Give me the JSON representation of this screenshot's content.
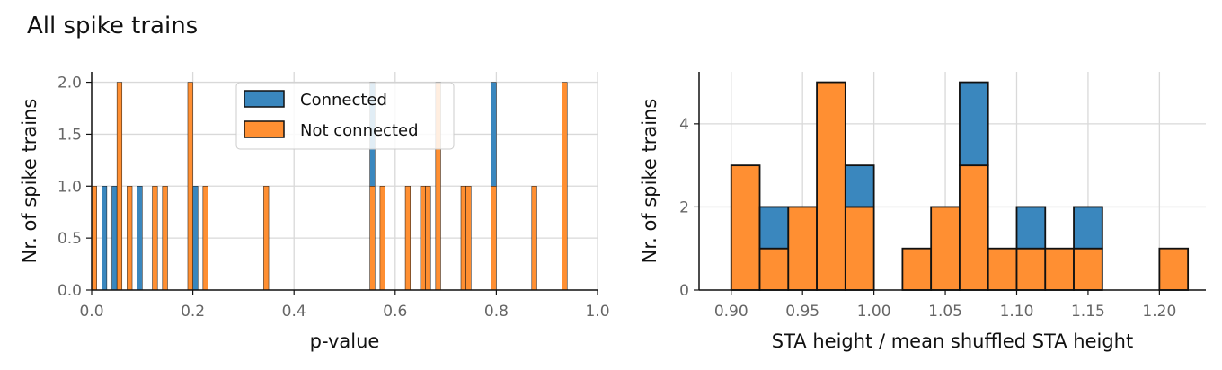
{
  "title": "All spike trains",
  "colors": {
    "connected": "#3a87be",
    "not_connected": "#ff8f32",
    "edge": "#111111"
  },
  "chart_data": [
    {
      "type": "bar",
      "subtype": "stacked-histogram",
      "xlabel": "p-value",
      "ylabel": "Nr. of spike trains",
      "xlim": [
        0,
        1.0
      ],
      "ylim": [
        0,
        2.1
      ],
      "xticks": [
        "0.0",
        "0.2",
        "0.4",
        "0.6",
        "0.8",
        "1.0"
      ],
      "yticks": [
        "0.0",
        "0.5",
        "1.0",
        "1.5",
        "2.0"
      ],
      "grid": true,
      "legend": {
        "placement": "top-center",
        "entries": [
          "Connected",
          "Not connected"
        ]
      },
      "bin_width": 0.01,
      "series": [
        {
          "name": "Connected",
          "bins": [
            [
              0.02,
              1
            ],
            [
              0.04,
              1
            ],
            [
              0.09,
              1
            ],
            [
              0.2,
              1
            ],
            [
              0.55,
              1
            ],
            [
              0.79,
              1
            ]
          ]
        },
        {
          "name": "Not connected",
          "bins": [
            [
              0.0,
              1
            ],
            [
              0.05,
              2
            ],
            [
              0.07,
              1
            ],
            [
              0.12,
              1
            ],
            [
              0.14,
              1
            ],
            [
              0.19,
              2
            ],
            [
              0.22,
              1
            ],
            [
              0.34,
              1
            ],
            [
              0.55,
              1
            ],
            [
              0.57,
              1
            ],
            [
              0.62,
              1
            ],
            [
              0.65,
              1
            ],
            [
              0.66,
              1
            ],
            [
              0.68,
              2
            ],
            [
              0.73,
              1
            ],
            [
              0.74,
              1
            ],
            [
              0.79,
              1
            ],
            [
              0.87,
              1
            ],
            [
              0.93,
              2
            ]
          ]
        }
      ]
    },
    {
      "type": "bar",
      "subtype": "stacked-histogram",
      "xlabel": "STA height / mean shuffled STA height",
      "ylabel": "Nr. of spike trains",
      "xlim": [
        0.8775,
        1.2325
      ],
      "ylim": [
        0,
        5.25
      ],
      "xticks": [
        "0.90",
        "0.95",
        "1.00",
        "1.05",
        "1.10",
        "1.15",
        "1.20"
      ],
      "yticks": [
        "0",
        "2",
        "4"
      ],
      "grid": true,
      "bin_edges": [
        0.9,
        0.92,
        0.94,
        0.96,
        0.98,
        1.0,
        1.02,
        1.04,
        1.06,
        1.08,
        1.1,
        1.12,
        1.14,
        1.16,
        1.18,
        1.2,
        1.22
      ],
      "series": [
        {
          "name": "Connected",
          "values": [
            0,
            1,
            0,
            0,
            1,
            0,
            0,
            0,
            2,
            0,
            1,
            0,
            1,
            0,
            0,
            0
          ]
        },
        {
          "name": "Not connected",
          "values": [
            3,
            1,
            2,
            5,
            2,
            0,
            1,
            2,
            3,
            1,
            1,
            1,
            1,
            0,
            0,
            1
          ]
        }
      ]
    }
  ]
}
